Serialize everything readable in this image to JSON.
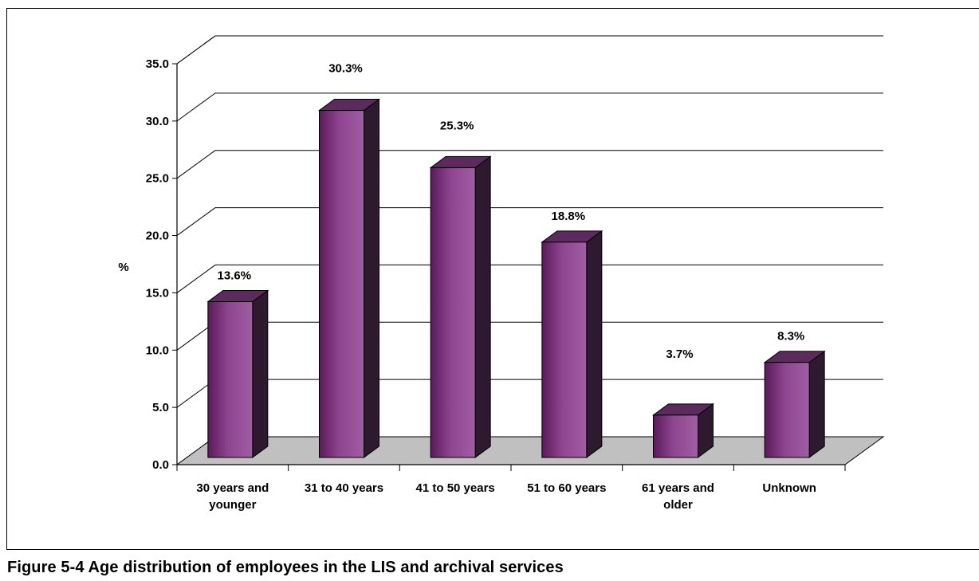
{
  "caption": "Figure 5-4  Age distribution of employees in the LIS and archival services",
  "chart_data": {
    "type": "bar",
    "title": "",
    "xlabel": "",
    "ylabel": "%",
    "ylim": [
      0,
      35
    ],
    "yticks": [
      "0.0",
      "5.0",
      "10.0",
      "15.0",
      "20.0",
      "25.0",
      "30.0",
      "35.0"
    ],
    "categories": [
      "30 years and younger",
      "31 to 40 years",
      "41 to 50 years",
      "51 to 60 years",
      "61 years and older",
      "Unknown"
    ],
    "category_lines": [
      [
        "30 years and",
        "younger"
      ],
      [
        "31 to 40 years"
      ],
      [
        "41 to 50 years"
      ],
      [
        "51 to 60 years"
      ],
      [
        "61 years and",
        "older"
      ],
      [
        "Unknown"
      ]
    ],
    "values": [
      13.6,
      30.3,
      25.3,
      18.8,
      3.7,
      8.3
    ],
    "data_labels": [
      "13.6%",
      "30.3%",
      "25.3%",
      "18.8%",
      "3.7%",
      "8.3%"
    ],
    "grid": true,
    "legend": "none",
    "style": "3d-column",
    "colors": {
      "bar_front": "#8b3a8b",
      "bar_dark": "#5a1a5a",
      "bar_side": "#2e1a2e",
      "bar_top": "#5c2a5c",
      "floor": "#c0c0c0"
    }
  }
}
